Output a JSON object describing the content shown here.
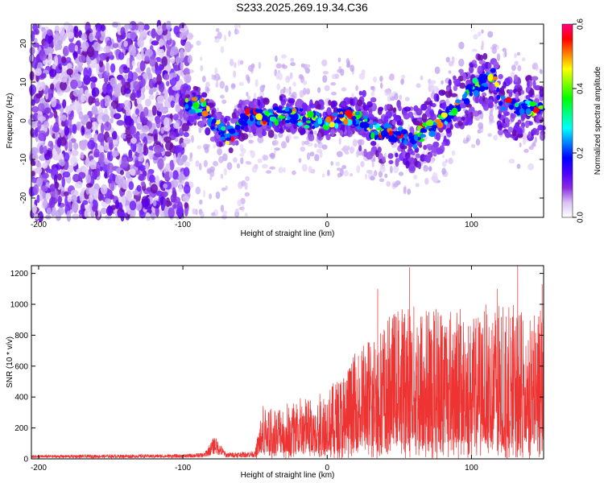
{
  "title": "S233.2025.269.19.34.C36",
  "chart_data": [
    {
      "type": "heatmap",
      "name": "spectrogram",
      "xlabel": "Height of straight line (km)",
      "ylabel": "Frequency (Hz)",
      "xlim": [
        -205,
        150
      ],
      "ylim": [
        -25,
        25
      ],
      "xticks": [
        -200,
        -100,
        0,
        100
      ],
      "yticks": [
        -20,
        -10,
        0,
        10,
        20
      ],
      "colorbar": {
        "label": "Normalized spectral amplitude",
        "range": [
          0.0,
          0.6
        ],
        "ticks": [
          "0.0",
          "0.2",
          "0.4",
          "0.6"
        ],
        "colors": [
          "#ffffff",
          "#d9c2f5",
          "#8a2be2",
          "#4b00ff",
          "#0000ff",
          "#0080ff",
          "#00ffff",
          "#00ff80",
          "#00ff00",
          "#80ff00",
          "#ffff00",
          "#ff8000",
          "#ff0000",
          "#ff0080"
        ]
      },
      "ridge": {
        "x": [
          -100,
          -95,
          -90,
          -85,
          -80,
          -75,
          -70,
          -65,
          -60,
          -50,
          -40,
          -30,
          -20,
          -10,
          0,
          10,
          20,
          25,
          30,
          40,
          50,
          60,
          70,
          80,
          90,
          100,
          110,
          115,
          120,
          130,
          140,
          150
        ],
        "y": [
          4,
          4,
          4,
          3,
          0,
          -2,
          -4,
          -3,
          0,
          1,
          1,
          2,
          1,
          0,
          0,
          1,
          1,
          0,
          -2,
          -3,
          -3,
          -5,
          -2,
          0,
          4,
          8,
          10,
          12,
          5,
          3,
          3,
          3
        ]
      }
    },
    {
      "type": "line",
      "name": "snr",
      "xlabel": "Height of straight line (km)",
      "ylabel": "SNR (10 * v/v)",
      "xlim": [
        -205,
        150
      ],
      "ylim": [
        0,
        1250
      ],
      "xticks": [
        -200,
        -100,
        0,
        100
      ],
      "yticks": [
        0,
        200,
        400,
        600,
        800,
        1000,
        1200
      ],
      "color": "#ee3333",
      "envelope": {
        "x": [
          -205,
          -100,
          -85,
          -78,
          -70,
          -50,
          -45,
          -35,
          -20,
          -10,
          0,
          10,
          20,
          30,
          40,
          50,
          60,
          70,
          80,
          90,
          100,
          110,
          120,
          130,
          140,
          150
        ],
        "y": [
          25,
          30,
          40,
          150,
          40,
          50,
          350,
          350,
          400,
          400,
          450,
          550,
          700,
          800,
          900,
          1000,
          1000,
          1000,
          1000,
          1000,
          900,
          1000,
          1000,
          1000,
          900,
          1000
        ]
      },
      "peaks": [
        {
          "x": 57,
          "y": 1240
        },
        {
          "x": 132,
          "y": 1250
        },
        {
          "x": 149,
          "y": 1130
        },
        {
          "x": 118,
          "y": 1100
        },
        {
          "x": 35,
          "y": 1100
        }
      ]
    }
  ]
}
